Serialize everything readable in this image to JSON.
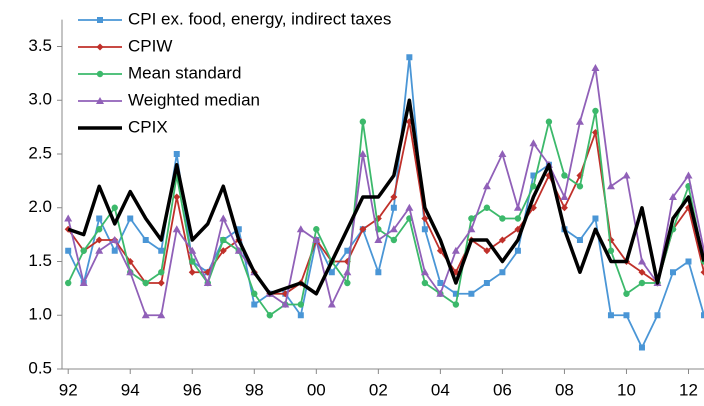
{
  "chart_data": {
    "type": "line",
    "x": [
      1992,
      1992.5,
      1993,
      1993.5,
      1994,
      1994.5,
      1995,
      1995.5,
      1996,
      1996.5,
      1997,
      1997.5,
      1998,
      1998.5,
      1999,
      1999.5,
      2000,
      2000.5,
      2001,
      2001.5,
      2002,
      2002.5,
      2003,
      2003.5,
      2004,
      2004.5,
      2005,
      2005.5,
      2006,
      2006.5,
      2007,
      2007.5,
      2008,
      2008.5,
      2009,
      2009.5,
      2010,
      2010.5,
      2011,
      2011.5,
      2012,
      2012.5
    ],
    "series": [
      {
        "name": "CPI ex. food, energy, indirect taxes",
        "color": "#4a96d6",
        "marker": "square",
        "values": [
          1.6,
          1.3,
          1.9,
          1.6,
          1.9,
          1.7,
          1.6,
          2.5,
          1.5,
          1.4,
          1.7,
          1.8,
          1.1,
          1.2,
          1.2,
          1.0,
          1.7,
          1.4,
          1.6,
          1.8,
          1.4,
          2.0,
          3.4,
          1.8,
          1.3,
          1.2,
          1.2,
          1.3,
          1.4,
          1.6,
          2.3,
          2.4,
          1.8,
          1.7,
          1.9,
          1.0,
          1.0,
          0.7,
          1.0,
          1.4,
          1.5,
          1.0
        ]
      },
      {
        "name": "CPIW",
        "color": "#c0302a",
        "marker": "diamond",
        "values": [
          1.8,
          1.6,
          1.7,
          1.7,
          1.5,
          1.3,
          1.3,
          2.1,
          1.4,
          1.4,
          1.6,
          1.7,
          1.4,
          1.2,
          1.2,
          1.3,
          1.7,
          1.5,
          1.5,
          1.8,
          1.9,
          2.1,
          2.8,
          1.9,
          1.6,
          1.4,
          1.7,
          1.6,
          1.7,
          1.8,
          2.0,
          2.3,
          2.0,
          2.3,
          2.7,
          1.7,
          1.5,
          1.4,
          1.3,
          1.8,
          2.0,
          1.4
        ]
      },
      {
        "name": "Mean standard",
        "color": "#3cb96b",
        "marker": "circle",
        "values": [
          1.3,
          1.6,
          1.8,
          2.0,
          1.4,
          1.3,
          1.4,
          2.3,
          1.5,
          1.3,
          1.7,
          1.6,
          1.2,
          1.0,
          1.1,
          1.1,
          1.8,
          1.5,
          1.3,
          2.8,
          1.8,
          1.7,
          1.9,
          1.3,
          1.2,
          1.1,
          1.9,
          2.0,
          1.9,
          1.9,
          2.2,
          2.8,
          2.3,
          2.2,
          2.9,
          1.6,
          1.2,
          1.3,
          1.3,
          1.8,
          2.2,
          1.5
        ]
      },
      {
        "name": "Weighted median",
        "color": "#9060b8",
        "marker": "triangle",
        "values": [
          1.9,
          1.3,
          1.6,
          1.7,
          1.4,
          1.0,
          1.0,
          1.8,
          1.6,
          1.3,
          1.9,
          1.6,
          1.4,
          1.2,
          1.1,
          1.8,
          1.7,
          1.1,
          1.4,
          2.5,
          1.7,
          1.8,
          2.0,
          1.4,
          1.2,
          1.6,
          1.8,
          2.2,
          2.5,
          2.0,
          2.6,
          2.4,
          2.1,
          2.8,
          3.3,
          2.2,
          2.3,
          1.5,
          1.3,
          2.1,
          2.3,
          1.6
        ]
      },
      {
        "name": "CPIX",
        "color": "#000000",
        "marker": "none",
        "values": [
          1.8,
          1.75,
          2.2,
          1.85,
          2.15,
          1.9,
          1.7,
          2.4,
          1.7,
          1.85,
          2.2,
          1.7,
          1.4,
          1.2,
          1.25,
          1.3,
          1.2,
          1.5,
          1.8,
          2.1,
          2.1,
          2.3,
          3.0,
          2.0,
          1.7,
          1.3,
          1.7,
          1.7,
          1.5,
          1.7,
          2.1,
          2.4,
          1.8,
          1.4,
          1.8,
          1.5,
          1.5,
          2.0,
          1.3,
          1.9,
          2.1,
          1.5
        ]
      }
    ],
    "xlim": [
      1991.8,
      2012.5
    ],
    "xticks": [
      {
        "value": 1992,
        "label": "92"
      },
      {
        "value": 1994,
        "label": "94"
      },
      {
        "value": 1996,
        "label": "96"
      },
      {
        "value": 1998,
        "label": "98"
      },
      {
        "value": 2000,
        "label": "00"
      },
      {
        "value": 2002,
        "label": "02"
      },
      {
        "value": 2004,
        "label": "04"
      },
      {
        "value": 2006,
        "label": "06"
      },
      {
        "value": 2008,
        "label": "08"
      },
      {
        "value": 2010,
        "label": "10"
      },
      {
        "value": 2012,
        "label": "12"
      }
    ],
    "ylim": [
      0.5,
      3.75
    ],
    "yticks": [
      {
        "value": 0.5,
        "label": "0.5"
      },
      {
        "value": 1,
        "label": "1.0"
      },
      {
        "value": 1.5,
        "label": "1.5"
      },
      {
        "value": 2,
        "label": "2.0"
      },
      {
        "value": 2.5,
        "label": "2.5"
      },
      {
        "value": 3,
        "label": "3.0"
      },
      {
        "value": 3.5,
        "label": "3.5"
      }
    ],
    "grid": false,
    "legend": "top-left"
  }
}
